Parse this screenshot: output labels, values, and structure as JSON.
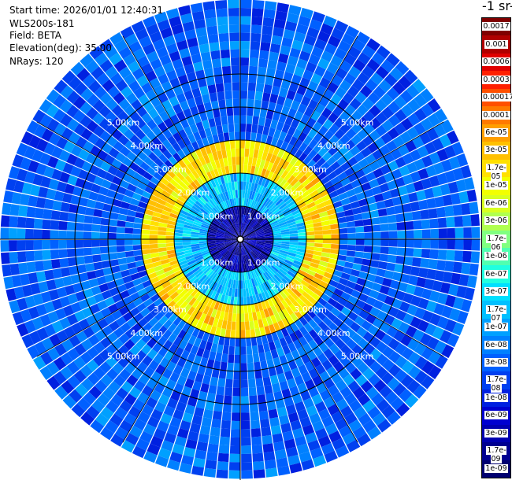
{
  "info": {
    "start_time": "Start time: 2026/01/01 12:40:31",
    "instrument": "WLS200s-181",
    "field": "Field: BETA",
    "elevation": "Elevation(deg): 35.00",
    "nrays": "NRays: 120"
  },
  "colorbar": {
    "title": "-1 sr-",
    "labels": [
      "0.0017",
      "0.001",
      "0.0006",
      "0.0003",
      "0.00017",
      "0.0001",
      "6e-05",
      "3e-05",
      "1.7e-05",
      "1e-05",
      "6e-06",
      "3e-06",
      "1.7e-06",
      "1e-06",
      "6e-07",
      "3e-07",
      "1.7e-07",
      "1e-07",
      "6e-08",
      "3e-08",
      "1.7e-08",
      "1e-08",
      "6e-09",
      "3e-09",
      "1.7e-09",
      "1e-09"
    ],
    "colors": [
      "#800000",
      "#b00000",
      "#e00000",
      "#ff2000",
      "#ff5000",
      "#ff7a00",
      "#ff9f00",
      "#ffc000",
      "#ffe000",
      "#f2ff00",
      "#d8ff20",
      "#b0ff50",
      "#80ff80",
      "#50ffb0",
      "#20ffe0",
      "#00e0ff",
      "#00c0ff",
      "#00a0ff",
      "#0080ff",
      "#0060ff",
      "#0040f0",
      "#0020e0",
      "#0000d0",
      "#0000b0",
      "#000090",
      "#000070"
    ]
  },
  "chart_data": {
    "type": "heatmap",
    "projection": "polar PPI",
    "field": "BETA",
    "elevation_deg": 35.0,
    "n_rays": 120,
    "range_ring_labels": [
      "1.00km",
      "2.00km",
      "3.00km",
      "4.00km",
      "5.00km"
    ],
    "range_rings_km": [
      1,
      2,
      3,
      4,
      5
    ],
    "max_range_km": 7.1,
    "label_azimuths_deg": [
      45,
      135,
      225,
      315
    ],
    "spoke_step_deg": 30,
    "color_scale": "logarithmic",
    "value_range": [
      1e-09,
      0.0017
    ],
    "structure": [
      {
        "feature": "aerosol ring (yellow-green)",
        "range_km": [
          2.0,
          3.0
        ],
        "beta": 1.7e-05
      },
      {
        "feature": "inner region (cyan)",
        "range_km": [
          1.0,
          2.0
        ],
        "beta": 1.7e-07
      },
      {
        "feature": "near-center (dark blue)",
        "range_km": [
          0.0,
          1.0
        ],
        "beta": 3e-09
      },
      {
        "feature": "outer region (blue)",
        "range_km": [
          3.0,
          7.1
        ],
        "beta": 3e-08
      }
    ]
  }
}
